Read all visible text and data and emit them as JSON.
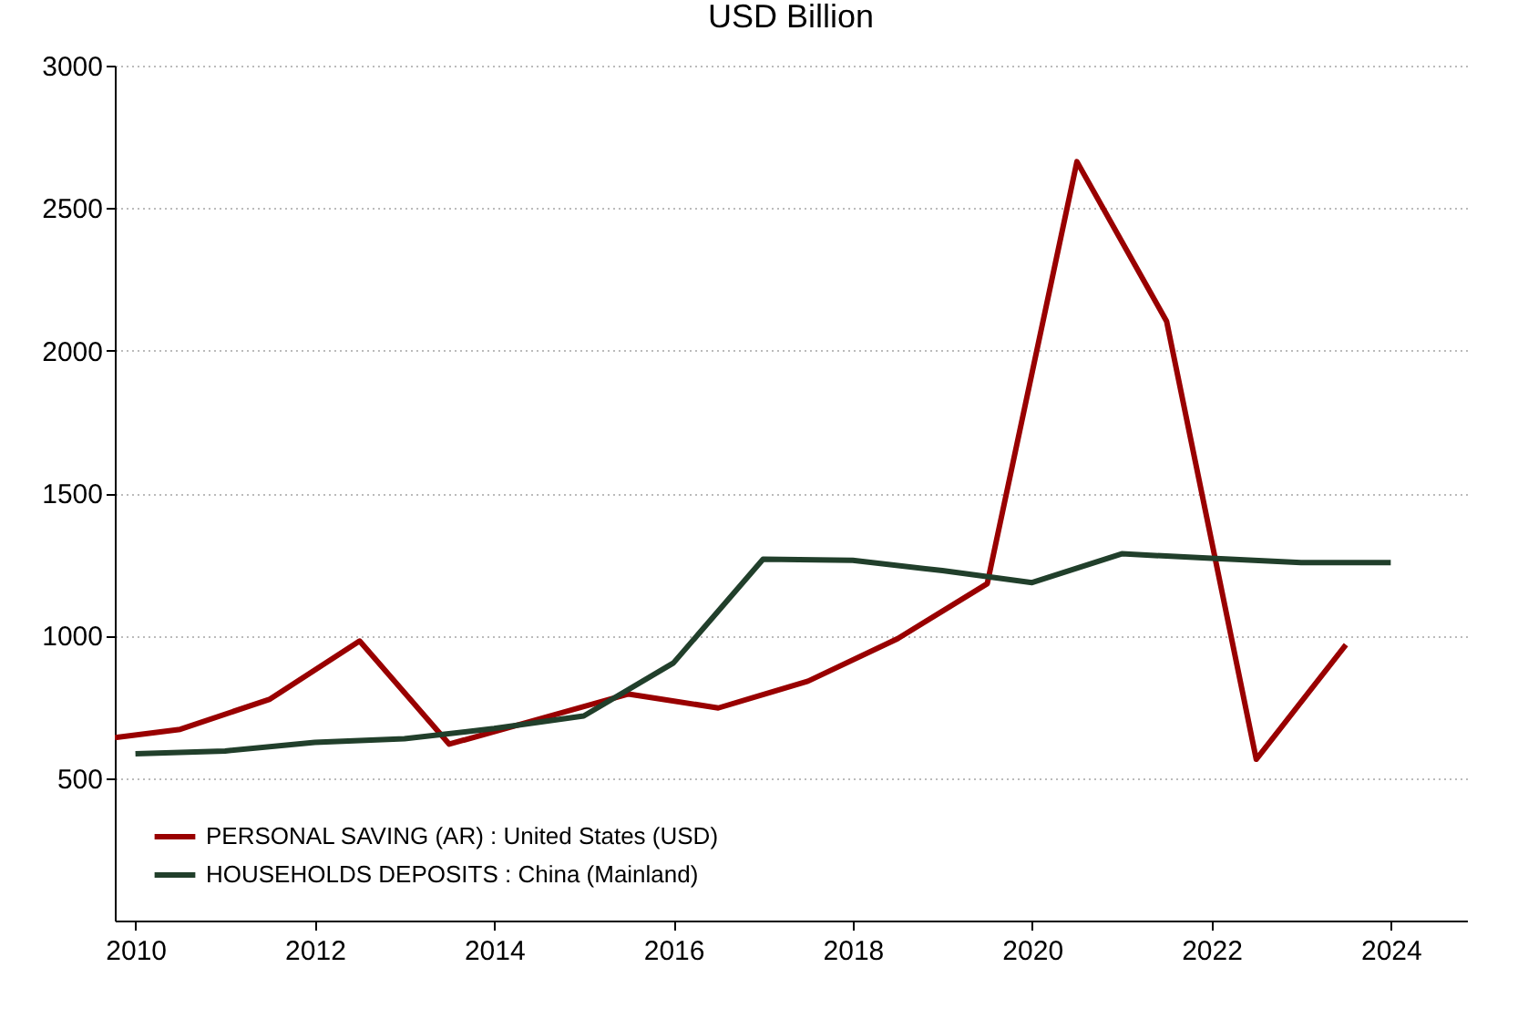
{
  "chart_data": {
    "type": "line",
    "title": "USD Billion",
    "xlim": [
      2009.77,
      2024.85
    ],
    "xticks": [
      2010,
      2012,
      2014,
      2016,
      2018,
      2020,
      2022,
      2024
    ],
    "ylim": [
      0,
      3000
    ],
    "yticks": [
      500,
      1000,
      1500,
      2000,
      2500,
      3000
    ],
    "grid": "y",
    "legend": "bottom left",
    "line_style": "solid",
    "marker": "none",
    "series": [
      {
        "name": "PERSONAL SAVING (AR) : United States (USD)",
        "color": "#990000",
        "x": [
          2009.77,
          2010.5,
          2011.5,
          2012.5,
          2013.5,
          2015.5,
          2016.5,
          2017.5,
          2018.5,
          2019.5,
          2020.5,
          2021.5,
          2022.5,
          2023.5
        ],
        "values": [
          642,
          671,
          777,
          981,
          619,
          795,
          746,
          840,
          989,
          1182,
          2663,
          2103,
          566,
          968
        ]
      },
      {
        "name": "HOUSEHOLDS DEPOSITS : China (Mainland)",
        "color": "#213f2b",
        "x": [
          2010,
          2011,
          2012,
          2013,
          2014,
          2015,
          2016,
          2017,
          2018,
          2019,
          2020,
          2021,
          2022,
          2023,
          2024
        ],
        "values": [
          585,
          595,
          625,
          638,
          674,
          718,
          904,
          1268,
          1264,
          1228,
          1186,
          1287,
          1271,
          1256,
          1256
        ]
      }
    ]
  }
}
